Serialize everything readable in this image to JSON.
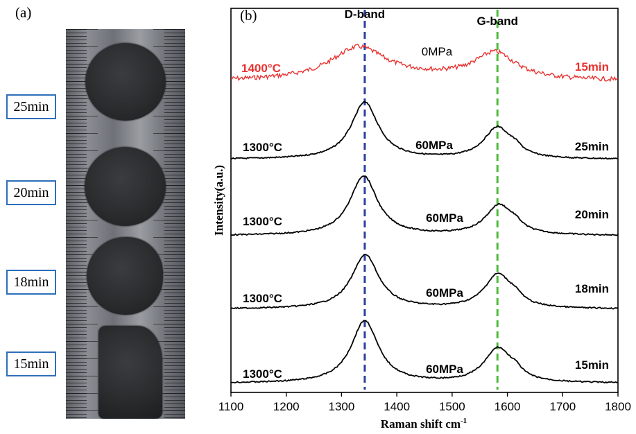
{
  "panel_a": {
    "label": "(a)",
    "samples": [
      "25min",
      "20min",
      "18min",
      "15min"
    ]
  },
  "chart_data": {
    "type": "line",
    "panel_label": "(b)",
    "xlabel": "Raman  shift cm",
    "xlabel_superscript": "-1",
    "ylabel": "Intensity(a.u.)",
    "xlim": [
      1100,
      1800
    ],
    "x_ticks": [
      1100,
      1200,
      1300,
      1400,
      1500,
      1600,
      1700,
      1800
    ],
    "y_ticks_shown": false,
    "reference_lines": [
      {
        "label": "D-band",
        "x": 1342,
        "color": "#2a3f9e",
        "style": "dashed"
      },
      {
        "label": "G-band",
        "x": 1582,
        "color": "#4cbb3a",
        "style": "dashed"
      }
    ],
    "series": [
      {
        "temperature": "1400°C",
        "pressure": "0MPa",
        "time": "15min",
        "color": "#e8322f",
        "d_peak": {
          "center": 1330,
          "height": 0.55
        },
        "g_peak": {
          "center": 1578,
          "height": 0.45
        }
      },
      {
        "temperature": "1300°C",
        "pressure": "60MPa",
        "time": "25min",
        "color": "#000000",
        "d_peak": {
          "center": 1342,
          "height": 1.0
        },
        "g_peak": {
          "center": 1582,
          "height": 0.55
        }
      },
      {
        "temperature": "1300°C",
        "pressure": "60MPa",
        "time": "20min",
        "color": "#000000",
        "d_peak": {
          "center": 1340,
          "height": 1.0
        },
        "g_peak": {
          "center": 1585,
          "height": 0.5
        }
      },
      {
        "temperature": "1300°C",
        "pressure": "60MPa",
        "time": "18min",
        "color": "#000000",
        "d_peak": {
          "center": 1343,
          "height": 0.95
        },
        "g_peak": {
          "center": 1583,
          "height": 0.6
        }
      },
      {
        "temperature": "1300°C",
        "pressure": "60MPa",
        "time": "15min",
        "color": "#000000",
        "d_peak": {
          "center": 1342,
          "height": 1.0
        },
        "g_peak": {
          "center": 1583,
          "height": 0.55
        }
      }
    ]
  }
}
